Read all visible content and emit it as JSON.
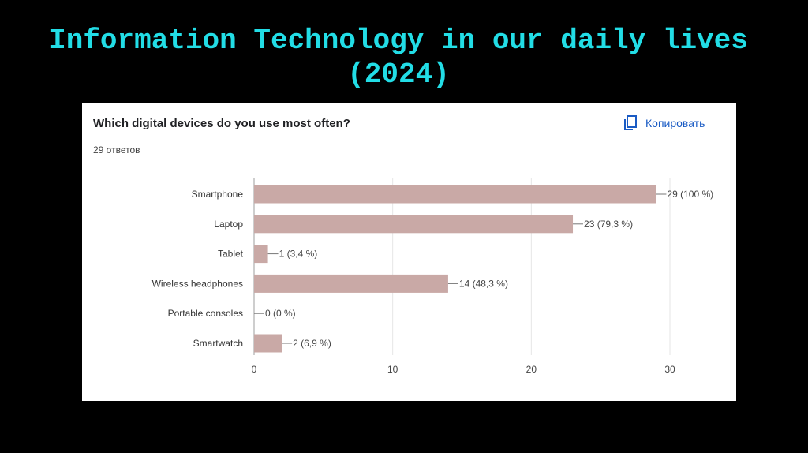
{
  "slide": {
    "title_line1": "Information Technology in our daily lives",
    "title_line2": "(2024)"
  },
  "card": {
    "question": "Which digital devices do you use most often?",
    "responses": "29 ответов",
    "copy_label": "Копировать",
    "copy_icon": "copy-icon"
  },
  "colors": {
    "title": "#22dde6",
    "bar": "#c9a9a6",
    "grid": "#e6e6e6",
    "axis": "#9e9e9e",
    "accent": "#1a5bc4"
  },
  "chart_data": {
    "type": "bar",
    "orientation": "horizontal",
    "title": "Which digital devices do you use most often?",
    "categories": [
      "Smartphone",
      "Laptop",
      "Tablet",
      "Wireless headphones",
      "Portable consoles",
      "Smartwatch"
    ],
    "values": [
      29,
      23,
      1,
      14,
      0,
      2
    ],
    "data_labels": [
      "29 (100 %)",
      "23 (79,3 %)",
      "1 (3,4 %)",
      "14 (48,3 %)",
      "0 (0 %)",
      "2 (6,9 %)"
    ],
    "xlim": [
      0,
      30
    ],
    "xticks": [
      0,
      10,
      20,
      30
    ],
    "xtick_labels": [
      "0",
      "10",
      "20",
      "30"
    ],
    "xlabel": "",
    "ylabel": "",
    "grid": true,
    "legend": "none"
  }
}
